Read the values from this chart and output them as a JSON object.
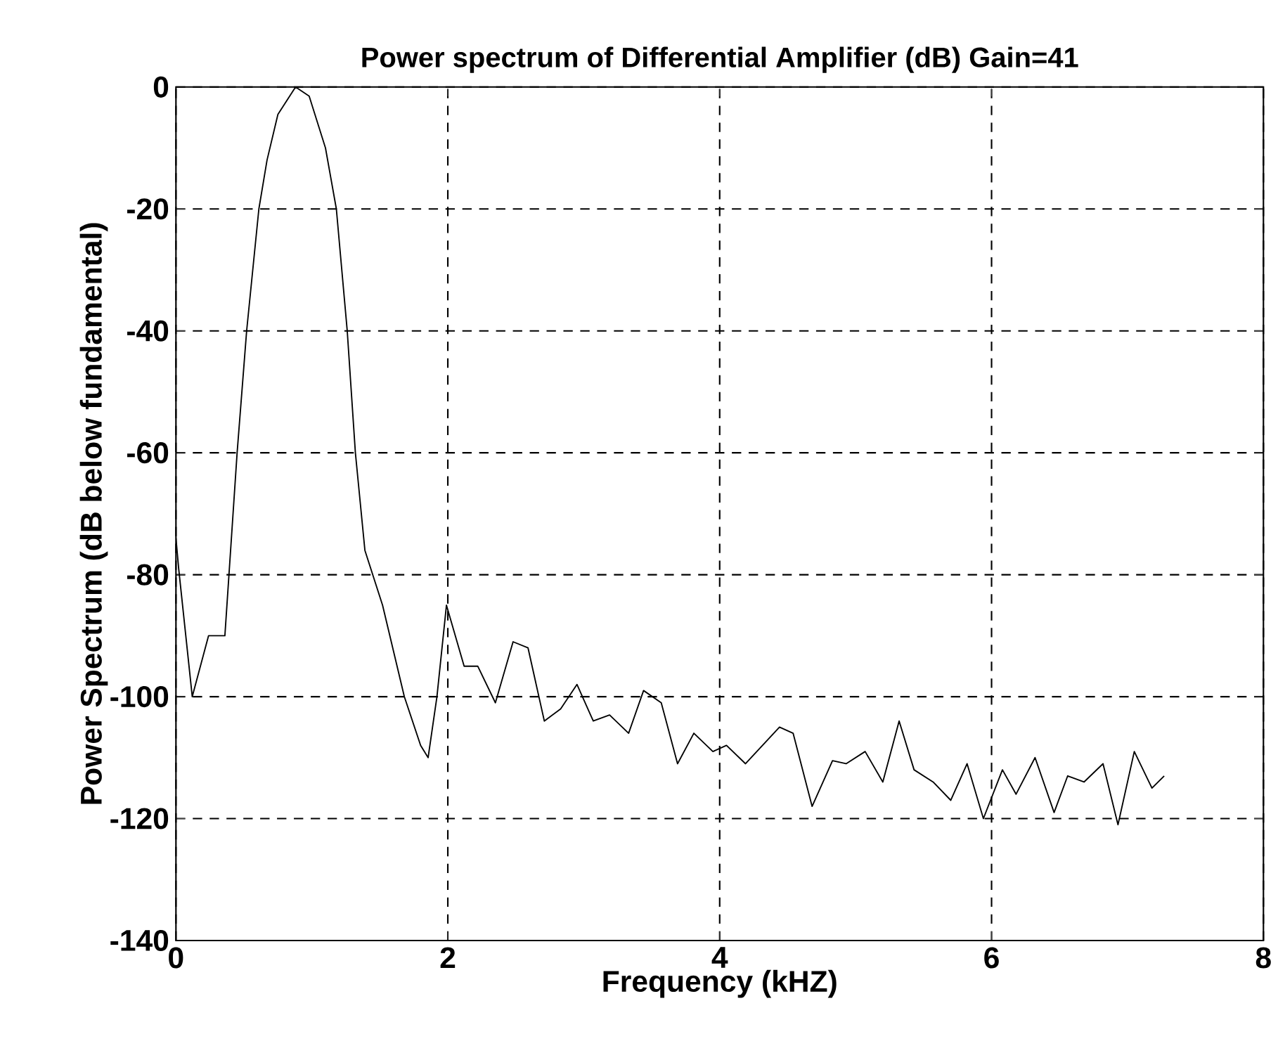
{
  "chart_data": {
    "type": "line",
    "title": "Power spectrum of Differential Amplifier (dB) Gain=41",
    "xlabel": "Frequency (kHZ)",
    "ylabel": "Power Spectrum (dB below fundamental)",
    "xlim": [
      0,
      8
    ],
    "ylim": [
      -140,
      0
    ],
    "xticks": [
      0,
      2,
      4,
      6,
      8
    ],
    "yticks": [
      -140,
      -120,
      -100,
      -80,
      -60,
      -40,
      -20,
      0
    ],
    "grid": true,
    "marker": "none",
    "line_style": "solid",
    "series": [
      {
        "color": "#000000",
        "x": [
          0,
          0.02,
          0.12,
          0.24,
          0.36,
          0.39,
          0.45,
          0.52,
          0.61,
          0.67,
          0.75,
          0.88,
          0.98,
          1.1,
          1.18,
          1.26,
          1.32,
          1.39,
          1.52,
          1.68,
          1.8,
          1.855,
          1.92,
          1.99,
          2.12,
          2.22,
          2.35,
          2.48,
          2.59,
          2.71,
          2.83,
          2.95,
          3.07,
          3.19,
          3.33,
          3.44,
          3.57,
          3.69,
          3.81,
          3.95,
          4.05,
          4.19,
          4.44,
          4.54,
          4.68,
          4.83,
          4.93,
          5.07,
          5.2,
          5.32,
          5.43,
          5.57,
          5.7,
          5.82,
          5.94,
          6.08,
          6.18,
          6.32,
          6.46,
          6.56,
          6.68,
          6.82,
          6.93,
          7.05,
          7.18,
          7.27
        ],
        "values": [
          -74,
          -79,
          -100,
          -90,
          -90,
          -80,
          -60,
          -40,
          -20,
          -12,
          -4.5,
          0,
          -1.5,
          -10,
          -20,
          -40,
          -60,
          -76,
          -85,
          -100,
          -108,
          -110,
          -100,
          -85,
          -95,
          -95,
          -101,
          -91,
          -92,
          -104,
          -102,
          -98,
          -104,
          -103,
          -106,
          -99,
          -101,
          -111,
          -106,
          -109,
          -108,
          -111,
          -105,
          -106,
          -118,
          -110.5,
          -111,
          -109,
          -114,
          -104,
          -112,
          -114,
          -117,
          -111,
          -120,
          -112,
          -116,
          -110,
          -119,
          -113,
          -114,
          -111,
          -121,
          -109,
          -115,
          -113
        ]
      }
    ]
  }
}
